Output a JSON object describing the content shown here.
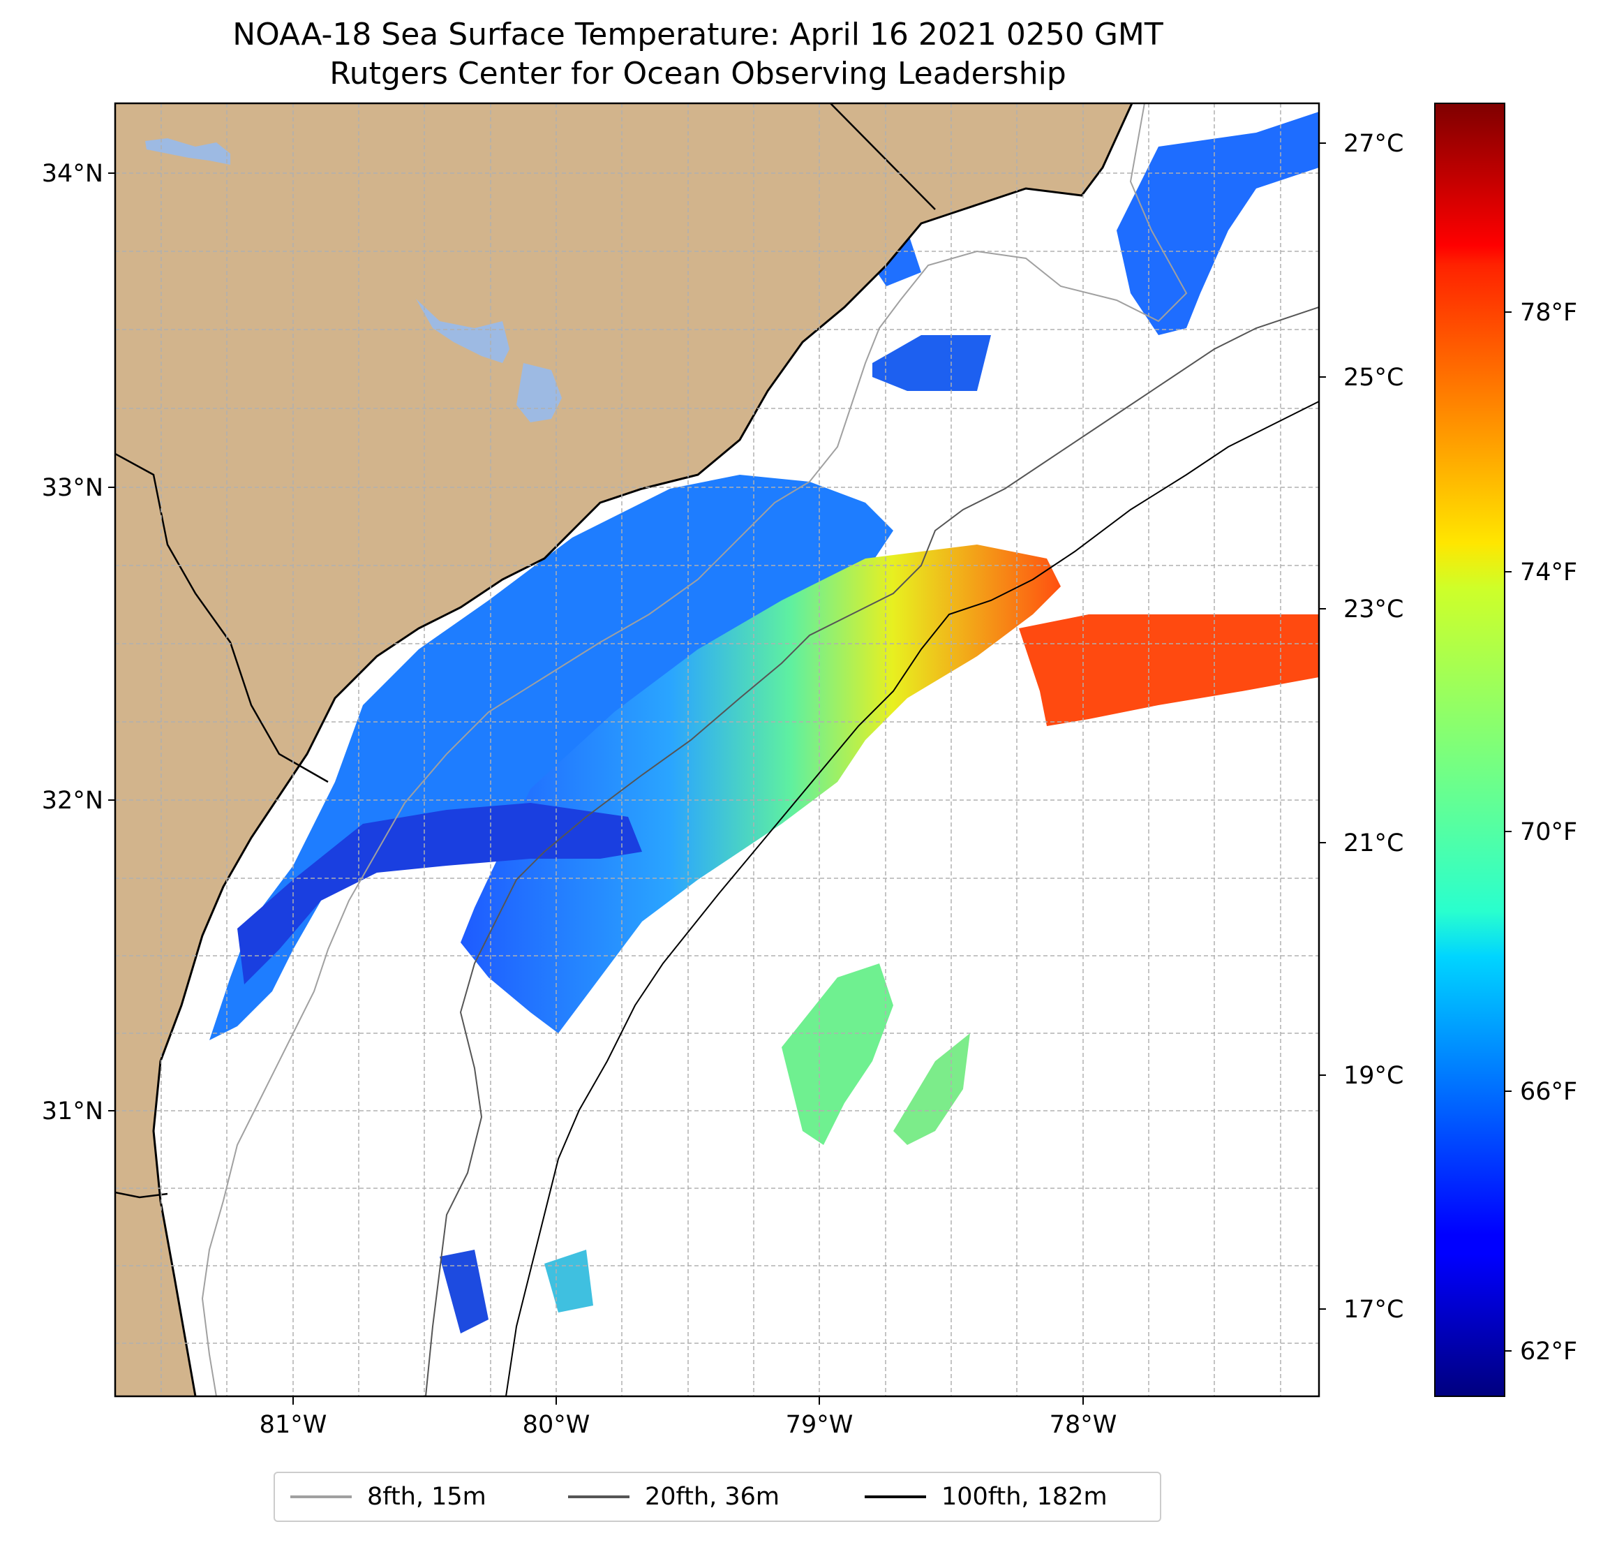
{
  "title": {
    "line1": "NOAA-18 Sea Surface Temperature: April 16 2021 0250 GMT",
    "line2": "Rutgers Center for Ocean Observing Leadership"
  },
  "map": {
    "lon_range": [
      -81.68,
      -77.1
    ],
    "lat_range": [
      30.22,
      34.23
    ],
    "land_color": "#d2b48c",
    "lake_color": "#9dbae3",
    "grid": true,
    "lat_ticks": [
      {
        "value": 34,
        "label": "34°N"
      },
      {
        "value": 33,
        "label": "33°N"
      },
      {
        "value": 32,
        "label": "32°N"
      },
      {
        "value": 31,
        "label": "31°N"
      }
    ],
    "lon_ticks": [
      {
        "value": -81,
        "label": "81°W"
      },
      {
        "value": -80,
        "label": "80°W"
      },
      {
        "value": -79,
        "label": "79°W"
      },
      {
        "value": -78,
        "label": "78°W"
      }
    ]
  },
  "colorbar": {
    "colormap": "jet",
    "celsius_range": [
      16.3,
      27.4
    ],
    "celsius_ticks": [
      {
        "value": 27,
        "label": "27°C"
      },
      {
        "value": 25,
        "label": "25°C"
      },
      {
        "value": 23,
        "label": "23°C"
      },
      {
        "value": 21,
        "label": "21°C"
      },
      {
        "value": 19,
        "label": "19°C"
      },
      {
        "value": 17,
        "label": "17°C"
      }
    ],
    "fahrenheit_ticks": [
      {
        "value": 78,
        "label": "78°F"
      },
      {
        "value": 74,
        "label": "74°F"
      },
      {
        "value": 70,
        "label": "70°F"
      },
      {
        "value": 66,
        "label": "66°F"
      },
      {
        "value": 62,
        "label": "62°F"
      }
    ]
  },
  "legend": {
    "placement": "bottom-center",
    "items": [
      {
        "label": "8fth, 15m",
        "color": "#a0a0a0"
      },
      {
        "label": "20fth, 36m",
        "color": "#555555"
      },
      {
        "label": "100fth, 182m",
        "color": "#000000"
      }
    ]
  }
}
